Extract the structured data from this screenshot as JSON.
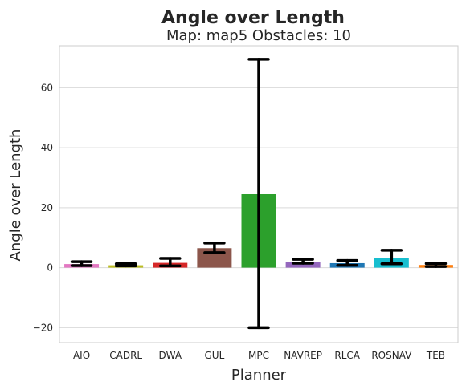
{
  "chart_data": {
    "type": "bar",
    "title": "Angle over Length",
    "subtitle": "Map: map5 Obstacles: 10",
    "xlabel": "Planner",
    "ylabel": "Angle over Length",
    "categories": [
      "AIO",
      "CADRL",
      "DWA",
      "GUL",
      "MPC",
      "NAVREP",
      "RLCA",
      "ROSNAV",
      "TEB"
    ],
    "values": [
      1.2,
      0.8,
      1.6,
      6.5,
      24.5,
      2.0,
      1.5,
      3.3,
      0.9
    ],
    "error_low": [
      0.7,
      0.6,
      0.6,
      5.0,
      -20.0,
      1.5,
      0.8,
      1.3,
      0.4
    ],
    "error_high": [
      2.0,
      1.3,
      3.1,
      8.2,
      69.5,
      2.8,
      2.4,
      5.8,
      1.4
    ],
    "colors": [
      "#e377c2",
      "#bcbd22",
      "#d62728",
      "#8c564b",
      "#2ca02c",
      "#9467bd",
      "#1f77b4",
      "#17becf",
      "#ff7f0e"
    ],
    "ylim": [
      -25,
      74
    ],
    "yticks": [
      -20,
      0,
      20,
      40,
      60
    ],
    "ytick_labels": [
      "−20",
      "0",
      "20",
      "40",
      "60"
    ],
    "grid": true
  }
}
